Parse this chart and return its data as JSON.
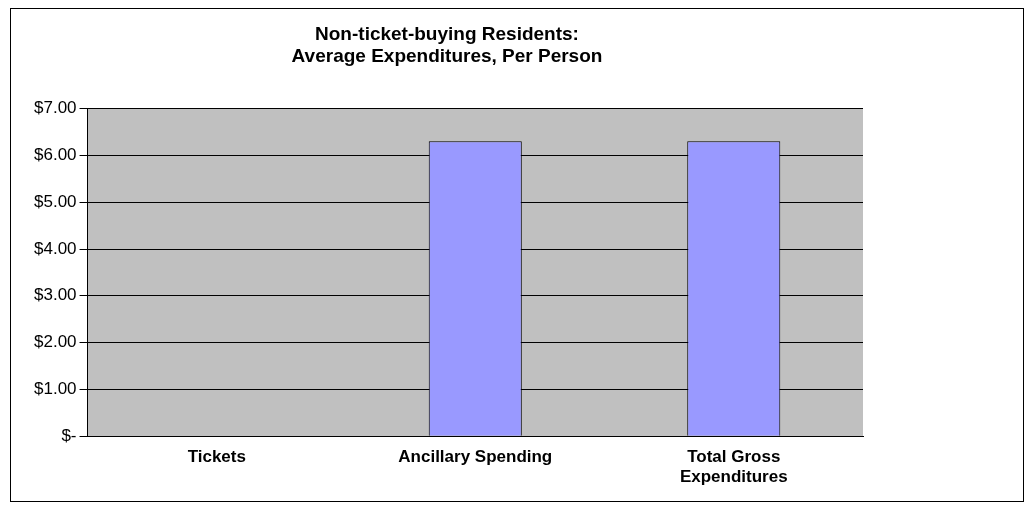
{
  "chart_data": {
    "type": "bar",
    "title": "Non-ticket-buying Residents:\nAverage Expenditures, Per Person",
    "categories": [
      "Tickets",
      "Ancillary Spending",
      "Total Gross Expenditures"
    ],
    "values": [
      0,
      6.3,
      6.3
    ],
    "color": "#9999ff",
    "ylim": [
      0,
      7
    ],
    "yticks": [
      {
        "value": 0,
        "label": "$-"
      },
      {
        "value": 1,
        "label": "$1.00"
      },
      {
        "value": 2,
        "label": "$2.00"
      },
      {
        "value": 3,
        "label": "$3.00"
      },
      {
        "value": 4,
        "label": "$4.00"
      },
      {
        "value": 5,
        "label": "$5.00"
      },
      {
        "value": 6,
        "label": "$6.00"
      },
      {
        "value": 7,
        "label": "$7.00"
      }
    ],
    "grid": "y",
    "legend": false
  }
}
